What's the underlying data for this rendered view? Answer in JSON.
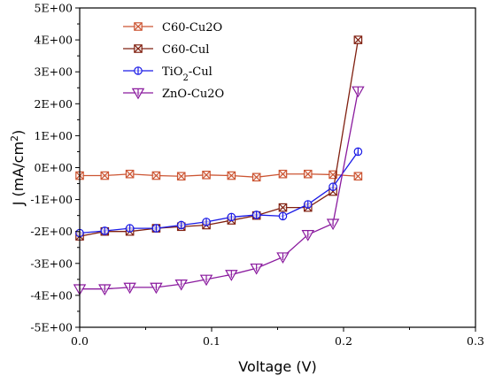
{
  "chart_data": {
    "type": "line",
    "xlabel": "Voltage (V)",
    "ylabel": "J (mA/cm²)",
    "ylabel_parts": [
      "J (mA/cm",
      "2",
      ")"
    ],
    "xlim": [
      0,
      0.3
    ],
    "ylim": [
      -5,
      5
    ],
    "x_ticks": [
      {
        "value": 0,
        "label": "0.0"
      },
      {
        "value": 0.1,
        "label": "0.1"
      },
      {
        "value": 0.2,
        "label": "0.2"
      },
      {
        "value": 0.3,
        "label": "0.3"
      }
    ],
    "y_ticks": [
      {
        "value": -5,
        "label": "-5E+00"
      },
      {
        "value": -4,
        "label": "-4E+00"
      },
      {
        "value": -3,
        "label": "-3E+00"
      },
      {
        "value": -2,
        "label": "-2E+00"
      },
      {
        "value": -1,
        "label": "-1E+00"
      },
      {
        "value": 0,
        "label": "0E+00"
      },
      {
        "value": 1,
        "label": "1E+00"
      },
      {
        "value": 2,
        "label": "2E+00"
      },
      {
        "value": 3,
        "label": "3E+00"
      },
      {
        "value": 4,
        "label": "4E+00"
      },
      {
        "value": 5,
        "label": "5E+00"
      }
    ],
    "grid": false,
    "legend_position": "top-left",
    "series": [
      {
        "name": "C60-Cu2O",
        "legend_parts": [
          "C60-Cu2O"
        ],
        "color": "#cc5533",
        "marker": "square-x",
        "x": [
          0.0,
          0.019,
          0.038,
          0.058,
          0.077,
          0.096,
          0.115,
          0.134,
          0.154,
          0.173,
          0.192,
          0.211
        ],
        "y": [
          -0.25,
          -0.25,
          -0.2,
          -0.25,
          -0.27,
          -0.23,
          -0.25,
          -0.3,
          -0.2,
          -0.2,
          -0.22,
          -0.27
        ]
      },
      {
        "name": "C60-Cul",
        "legend_parts": [
          "C60-Cul"
        ],
        "color": "#802010",
        "marker": "square-x",
        "x": [
          0.0,
          0.019,
          0.038,
          0.058,
          0.077,
          0.096,
          0.115,
          0.134,
          0.154,
          0.173,
          0.192,
          0.211
        ],
        "y": [
          -2.15,
          -2.0,
          -2.0,
          -1.9,
          -1.85,
          -1.8,
          -1.65,
          -1.5,
          -1.25,
          -1.25,
          -0.75,
          4.0
        ]
      },
      {
        "name": "TiO2-Cul",
        "legend_parts": [
          "TiO",
          "2",
          "-Cul"
        ],
        "color": "#1a1ae6",
        "marker": "circle-line",
        "x": [
          0.0,
          0.019,
          0.038,
          0.058,
          0.077,
          0.096,
          0.115,
          0.134,
          0.154,
          0.173,
          0.192,
          0.211
        ],
        "y": [
          -2.05,
          -1.98,
          -1.9,
          -1.9,
          -1.8,
          -1.7,
          -1.55,
          -1.48,
          -1.52,
          -1.15,
          -0.6,
          0.5
        ]
      },
      {
        "name": "ZnO-Cu2O",
        "legend_parts": [
          "ZnO-Cu2O"
        ],
        "color": "#8a1a9e",
        "marker": "triangle-down",
        "x": [
          0.0,
          0.019,
          0.038,
          0.058,
          0.077,
          0.096,
          0.115,
          0.134,
          0.154,
          0.173,
          0.192,
          0.211
        ],
        "y": [
          -3.8,
          -3.8,
          -3.75,
          -3.75,
          -3.65,
          -3.5,
          -3.35,
          -3.15,
          -2.8,
          -2.1,
          -1.75,
          2.4
        ]
      }
    ]
  }
}
